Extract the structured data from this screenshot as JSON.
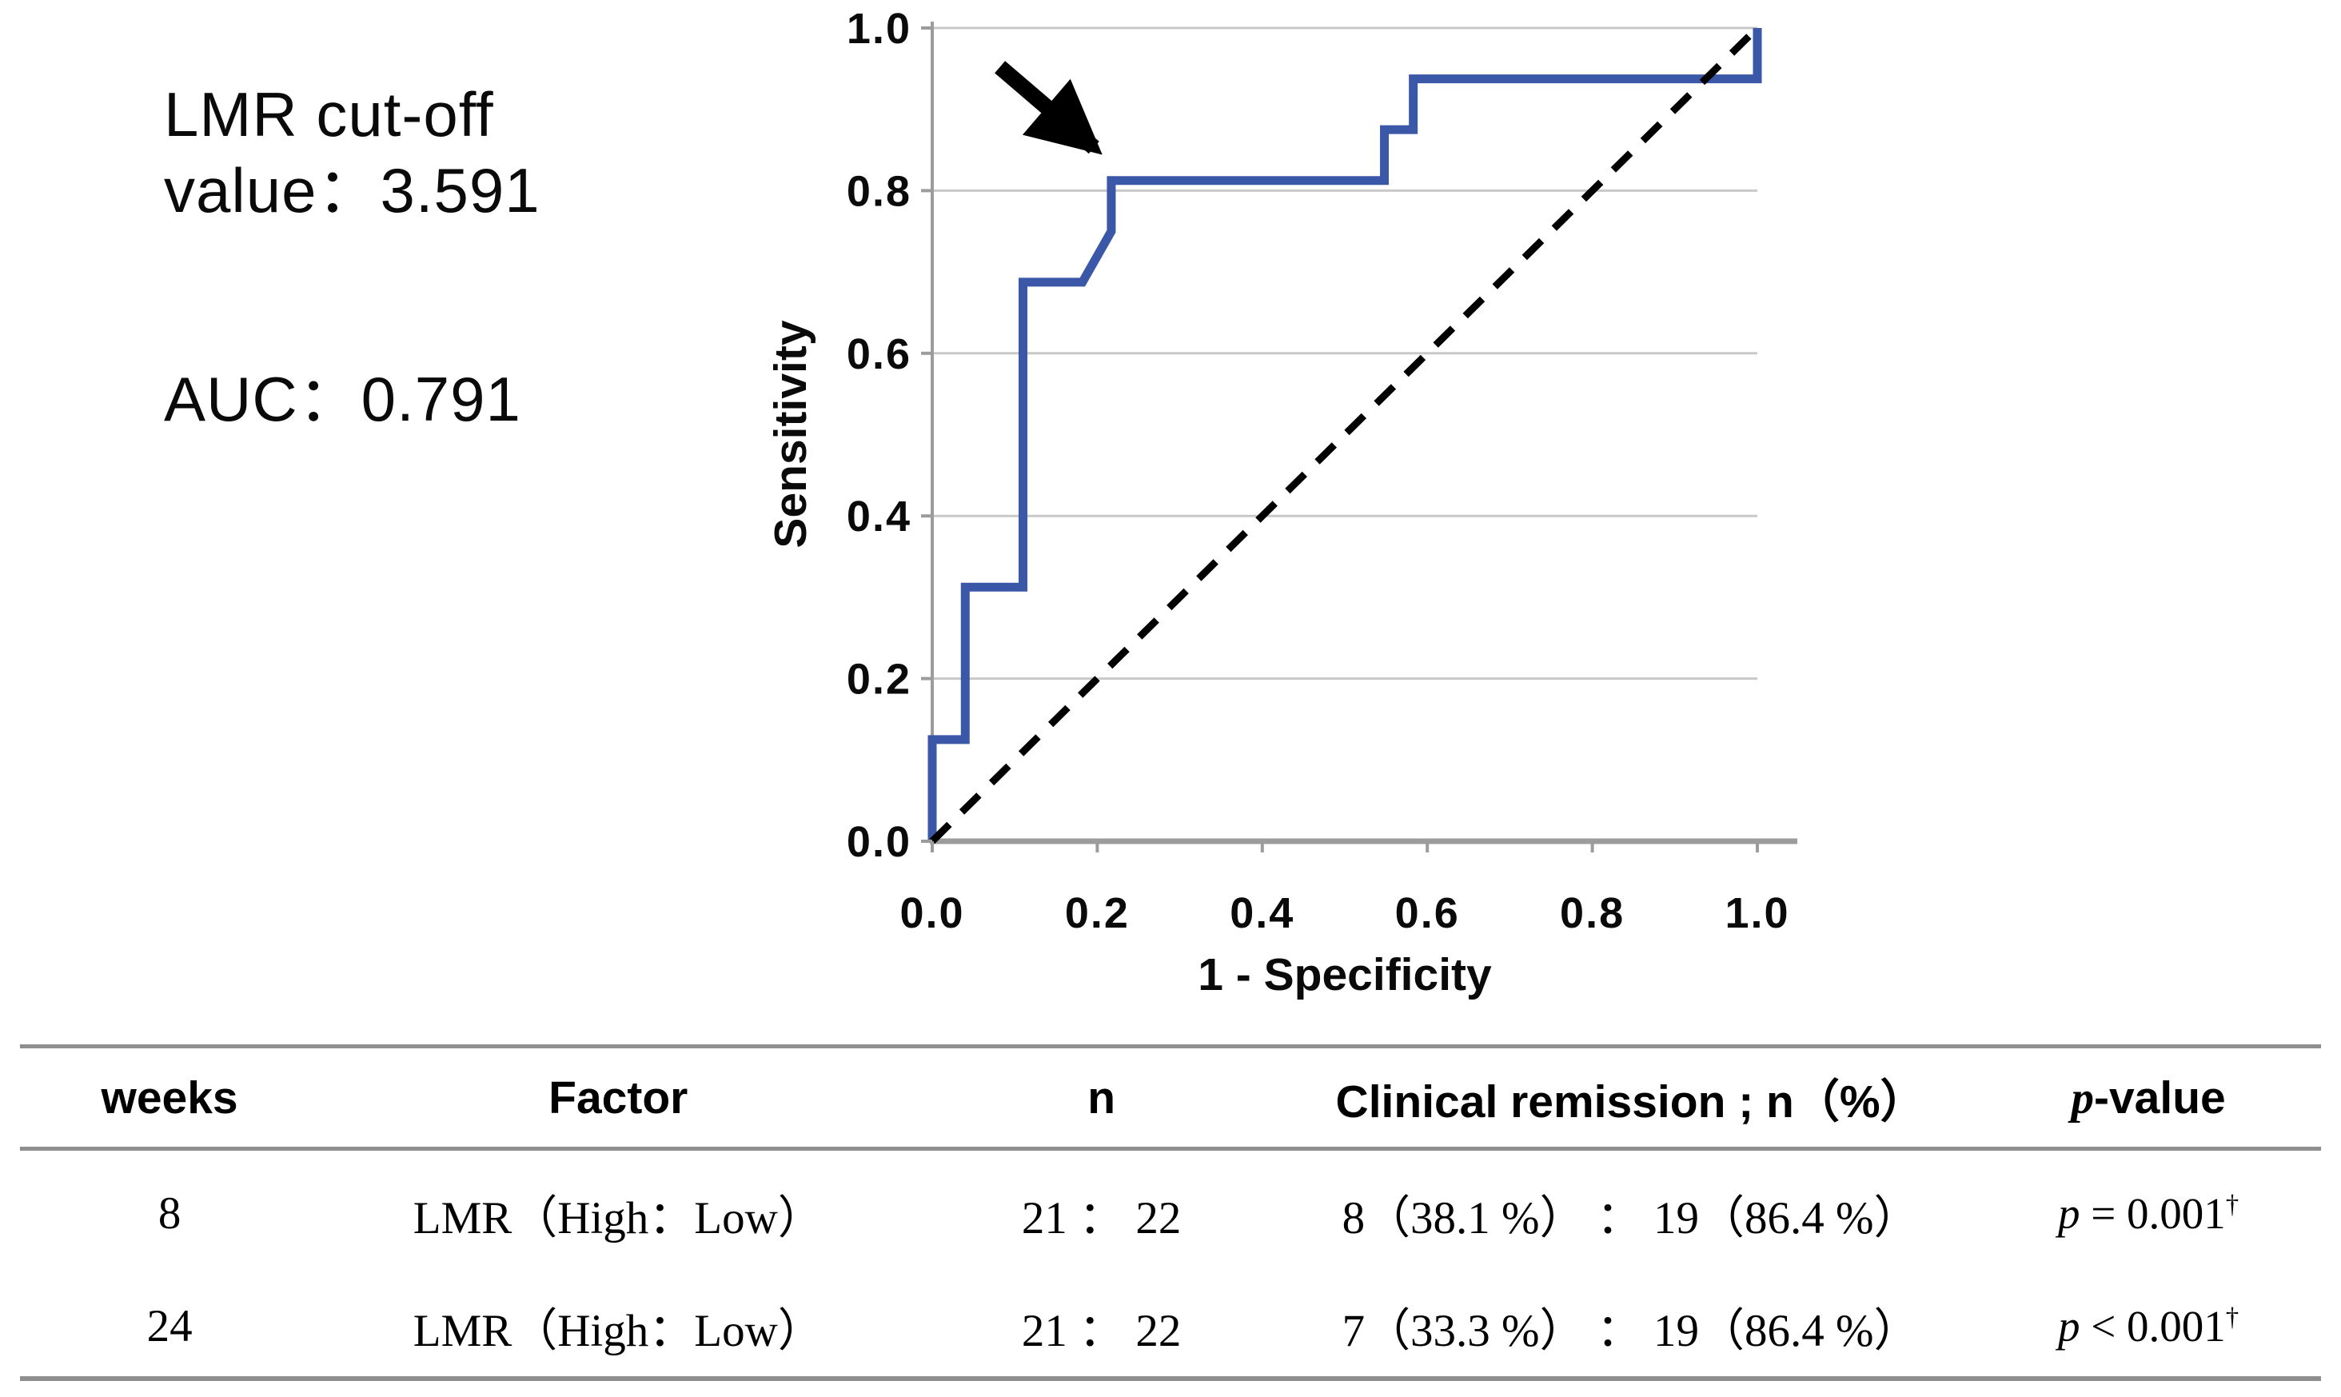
{
  "annotation": {
    "cutoff_line1": "LMR cut-off",
    "cutoff_line2": "value：3.591",
    "auc": "AUC：0.791"
  },
  "chart_data": {
    "type": "line",
    "subtype": "ROC step curve with dashed reference diagonal",
    "xlabel": "1 - Specificity",
    "ylabel": "Sensitivity",
    "xlim": [
      0.0,
      1.0
    ],
    "ylim": [
      0.0,
      1.0
    ],
    "xticks": [
      "0.0",
      "0.2",
      "0.4",
      "0.6",
      "0.8",
      "1.0"
    ],
    "yticks": [
      "0.0",
      "0.2",
      "0.4",
      "0.6",
      "0.8",
      "1.0"
    ],
    "grid": "horizontal-only",
    "legend": "none",
    "series": [
      {
        "name": "ROC curve of LMR",
        "type": "step",
        "color": "#3a57a8",
        "points": [
          [
            0.0,
            0.0
          ],
          [
            0.0,
            0.125
          ],
          [
            0.04,
            0.125
          ],
          [
            0.04,
            0.3125
          ],
          [
            0.11,
            0.3125
          ],
          [
            0.11,
            0.6875
          ],
          [
            0.182,
            0.6875
          ],
          [
            0.217,
            0.75
          ],
          [
            0.217,
            0.8125
          ],
          [
            0.548,
            0.8125
          ],
          [
            0.548,
            0.875
          ],
          [
            0.583,
            0.875
          ],
          [
            0.583,
            0.9375
          ],
          [
            1.0,
            0.9375
          ],
          [
            1.0,
            1.0
          ]
        ]
      },
      {
        "name": "reference diagonal",
        "type": "dashed-diagonal",
        "color": "#000000",
        "points": [
          [
            0.0,
            0.0
          ],
          [
            1.0,
            1.0
          ]
        ]
      }
    ],
    "arrow_annotation": {
      "name": "cutoff-arrow",
      "from": [
        0.082,
        0.952
      ],
      "to": [
        0.196,
        0.853
      ]
    }
  },
  "table": {
    "headers": [
      "weeks",
      "Factor",
      "n",
      "Clinical remission ; n（%）"
    ],
    "p_header": {
      "italic": "p",
      "rest": "-value"
    },
    "rows": [
      {
        "weeks": "8",
        "factor": "LMR（High：Low）",
        "n": "21 ： 22",
        "remission": "8（38.1 %） ： 19（86.4 %）",
        "p": {
          "italic": "p",
          "rest": " = 0.001",
          "sup": "†"
        }
      },
      {
        "weeks": "24",
        "factor": "LMR（High：Low）",
        "n": "21 ： 22",
        "remission": "7（33.3 %） ： 19（86.4 %）",
        "p": {
          "italic": "p",
          "rest": " < 0.001",
          "sup": "†"
        }
      }
    ]
  },
  "colors": {
    "curve": "#3a57a8",
    "reference": "#000000",
    "gridline": "#c8c8c8",
    "axis": "#9c9c9c",
    "arrow": "#000000",
    "table_rule": "#8f8f8f",
    "background": "#ffffff",
    "text": "#000000"
  }
}
